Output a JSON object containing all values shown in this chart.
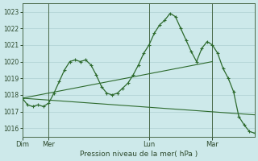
{
  "title": "Pression niveau de la mer( hPa )",
  "bg_color": "#cde9ea",
  "grid_color": "#aed0d2",
  "line_color": "#2d6a2d",
  "ylim": [
    1015.5,
    1023.5
  ],
  "yticks": [
    1016,
    1017,
    1018,
    1019,
    1020,
    1021,
    1022,
    1023
  ],
  "vline_color": "#4a6a4a",
  "line1_x": [
    0,
    2,
    4,
    6,
    8,
    10,
    12,
    14,
    16,
    18,
    20,
    22,
    24,
    26,
    28,
    30,
    32,
    34,
    36,
    38,
    40,
    42,
    44,
    46,
    48,
    50,
    52,
    54,
    56,
    58,
    60,
    62,
    64,
    66,
    68,
    70,
    72,
    74,
    76,
    78,
    80,
    82,
    84,
    86,
    88
  ],
  "line1_y": [
    1017.8,
    1017.4,
    1017.3,
    1017.4,
    1017.3,
    1017.5,
    1018.1,
    1018.8,
    1019.5,
    1020.0,
    1020.1,
    1020.0,
    1020.1,
    1019.8,
    1019.2,
    1018.5,
    1018.1,
    1018.0,
    1018.1,
    1018.4,
    1018.7,
    1019.2,
    1019.8,
    1020.5,
    1021.0,
    1021.7,
    1022.2,
    1022.5,
    1022.9,
    1022.7,
    1022.0,
    1021.3,
    1020.6,
    1020.0,
    1020.8,
    1021.2,
    1021.0,
    1020.5,
    1019.6,
    1019.0,
    1018.2,
    1016.7,
    1016.2,
    1015.8,
    1015.7
  ],
  "line2_x": [
    0,
    88
  ],
  "line2_y": [
    1017.8,
    1016.8
  ],
  "line3_x": [
    0,
    72
  ],
  "line3_y": [
    1017.8,
    1020.0
  ],
  "vlines": [
    10,
    48,
    72
  ],
  "xtick_pos": [
    0,
    10,
    48,
    72
  ],
  "xtick_labels": [
    "Dim",
    "Mer",
    "Lun",
    "Mar"
  ],
  "xlim": [
    0,
    88
  ]
}
